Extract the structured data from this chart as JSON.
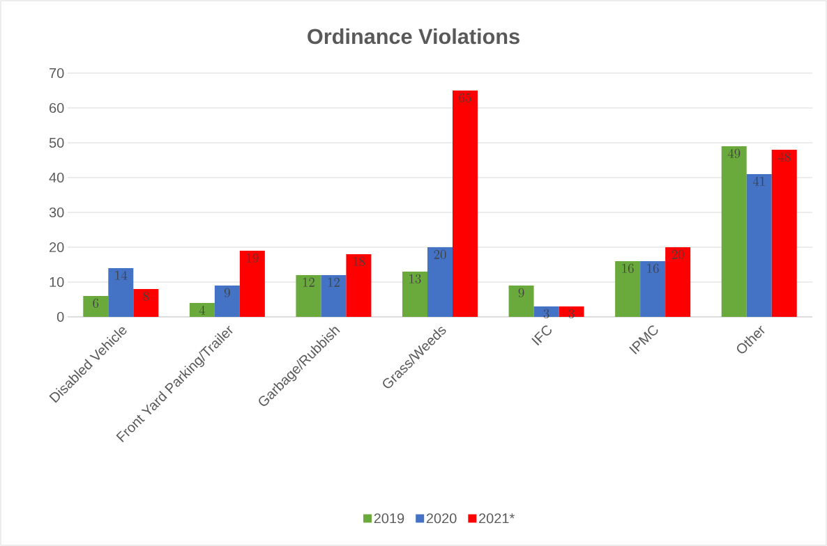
{
  "chart_data": {
    "type": "bar",
    "title": "Ordinance Violations",
    "categories": [
      "Disabled Vehicle",
      "Front Yard Parking/Trailer",
      "Garbage/Rubbish",
      "Grass/Weeds",
      "IFC",
      "IPMC",
      "Other"
    ],
    "series": [
      {
        "name": "2019",
        "color": "#6aaa3c",
        "values": [
          6,
          4,
          12,
          13,
          9,
          16,
          49
        ]
      },
      {
        "name": "2020",
        "color": "#4472c4",
        "values": [
          14,
          9,
          12,
          20,
          3,
          16,
          41
        ]
      },
      {
        "name": "2021*",
        "color": "#ff0000",
        "values": [
          8,
          19,
          18,
          65,
          3,
          20,
          48
        ]
      }
    ],
    "ylim": [
      0,
      70
    ],
    "yticks": [
      0,
      10,
      20,
      30,
      40,
      50,
      60,
      70
    ],
    "grid": "y",
    "legend": "bottom",
    "data_labels": true
  }
}
